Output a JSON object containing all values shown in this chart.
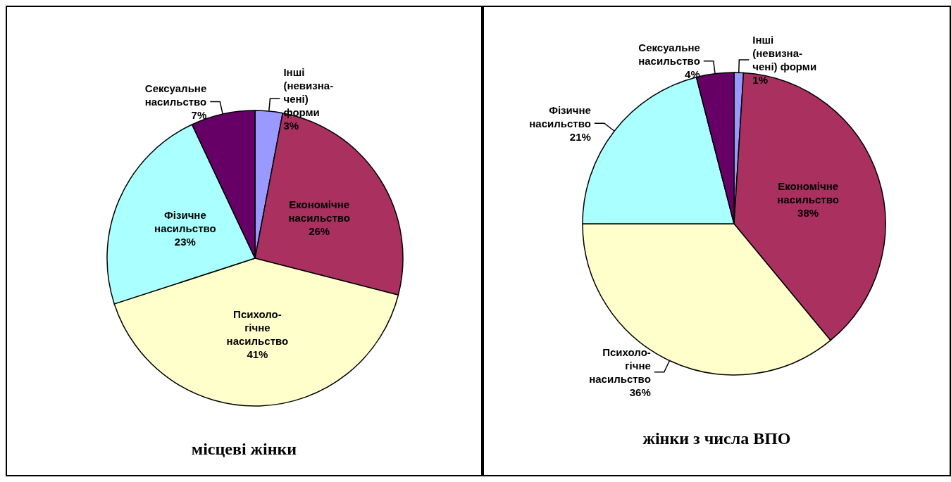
{
  "chart_data": [
    {
      "type": "pie",
      "title": "місцеві жінки",
      "categories": [
        "Інші\n(невизна-\nчені)\nформи",
        "Економічне\nнасильство",
        "Психоло-\nгічне\nнасильство",
        "Фізичне\nнасильство",
        "Сексуальне\nнасильство"
      ],
      "values": [
        3,
        26,
        41,
        23,
        7
      ],
      "value_labels": [
        "3%",
        "26%",
        "41%",
        "23%",
        "7%"
      ],
      "colors": [
        "#9999ff",
        "#aa3060",
        "#ffffcc",
        "#aaffff",
        "#660066"
      ]
    },
    {
      "type": "pie",
      "title": "жінки з числа ВПО",
      "categories": [
        "Інші\n(невизна-\nчені) форми",
        "Економічне\nнасильство",
        "Психоло-\nгічне\nнасильство",
        "Фізичне\nнасильство",
        "Сексуальне\nнасильство"
      ],
      "values": [
        1,
        38,
        36,
        21,
        4
      ],
      "value_labels": [
        "1%",
        "38%",
        "36%",
        "21%",
        "4%"
      ],
      "colors": [
        "#9999ff",
        "#aa3060",
        "#ffffcc",
        "#aaffff",
        "#660066"
      ]
    }
  ]
}
